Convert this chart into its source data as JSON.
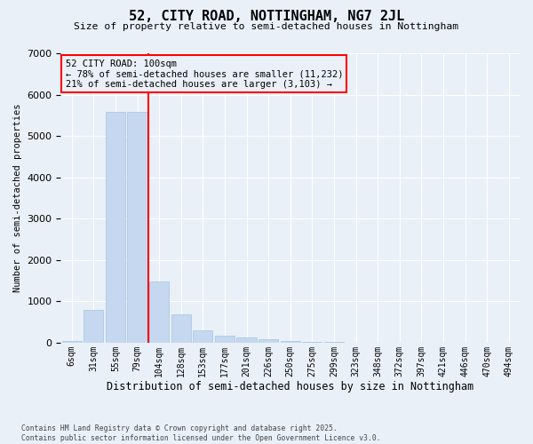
{
  "title": "52, CITY ROAD, NOTTINGHAM, NG7 2JL",
  "subtitle": "Size of property relative to semi-detached houses in Nottingham",
  "xlabel": "Distribution of semi-detached houses by size in Nottingham",
  "ylabel": "Number of semi-detached properties",
  "categories": [
    "6sqm",
    "31sqm",
    "55sqm",
    "79sqm",
    "104sqm",
    "128sqm",
    "153sqm",
    "177sqm",
    "201sqm",
    "226sqm",
    "250sqm",
    "275sqm",
    "299sqm",
    "323sqm",
    "348sqm",
    "372sqm",
    "397sqm",
    "421sqm",
    "446sqm",
    "470sqm",
    "494sqm"
  ],
  "values": [
    50,
    800,
    5580,
    5580,
    1480,
    680,
    290,
    170,
    120,
    80,
    40,
    18,
    10,
    5,
    3,
    2,
    1,
    1,
    0,
    0,
    0
  ],
  "bar_color": "#c5d8f0",
  "bar_edge_color": "#a0c4e0",
  "redline_bin_index": 4,
  "redline_label": "52 CITY ROAD: 100sqm",
  "annotation_line1": "← 78% of semi-detached houses are smaller (11,232)",
  "annotation_line2": "21% of semi-detached houses are larger (3,103) →",
  "ylim": [
    0,
    7000
  ],
  "yticks": [
    0,
    1000,
    2000,
    3000,
    4000,
    5000,
    6000,
    7000
  ],
  "background_color": "#eaf0f8",
  "grid_color": "#ffffff",
  "footer_line1": "Contains HM Land Registry data © Crown copyright and database right 2025.",
  "footer_line2": "Contains public sector information licensed under the Open Government Licence v3.0."
}
